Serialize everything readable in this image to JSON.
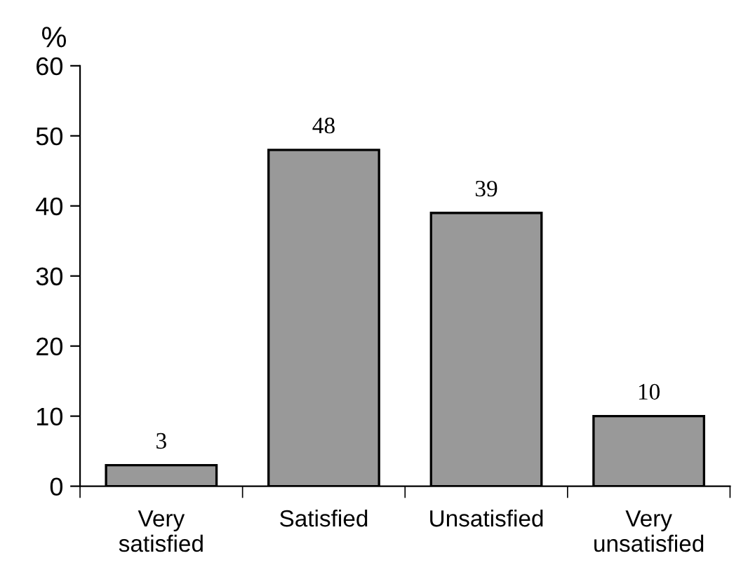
{
  "chart_data": {
    "type": "bar",
    "ylabel": "%",
    "categories": [
      "Very\nsatisfied",
      "Satisfied",
      "Unsatisfied",
      "Very\nunsatisfied"
    ],
    "values": [
      3,
      48,
      39,
      10
    ],
    "color": "#999999",
    "ylim": [
      0,
      60
    ],
    "yticks": [
      0,
      10,
      20,
      30,
      40,
      50,
      60
    ],
    "data_labels": true,
    "grid": false,
    "legend": false
  }
}
